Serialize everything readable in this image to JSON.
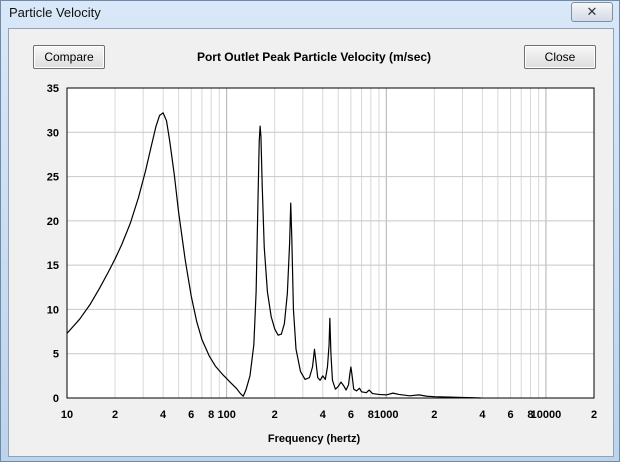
{
  "window": {
    "title": "Particle Velocity",
    "close_glyph": "✕"
  },
  "buttons": {
    "compare_label": "Compare",
    "close_label": "Close"
  },
  "chart_data": {
    "type": "line",
    "title": "Port Outlet Peak Particle Velocity (m/sec)",
    "xlabel": "Frequency (hertz)",
    "ylabel": "",
    "xscale": "log",
    "xlim": [
      10,
      20000
    ],
    "ylim": [
      0,
      35
    ],
    "grid": true,
    "yticks": [
      0,
      5,
      10,
      15,
      20,
      25,
      30,
      35
    ],
    "xtick_labels": [
      {
        "v": 10,
        "t": "10"
      },
      {
        "v": 20,
        "t": "2"
      },
      {
        "v": 40,
        "t": "4"
      },
      {
        "v": 60,
        "t": "6"
      },
      {
        "v": 80,
        "t": "8"
      },
      {
        "v": 100,
        "t": "100"
      },
      {
        "v": 200,
        "t": "2"
      },
      {
        "v": 400,
        "t": "4"
      },
      {
        "v": 600,
        "t": "6"
      },
      {
        "v": 800,
        "t": "8"
      },
      {
        "v": 1000,
        "t": "1000"
      },
      {
        "v": 2000,
        "t": "2"
      },
      {
        "v": 4000,
        "t": "4"
      },
      {
        "v": 6000,
        "t": "6"
      },
      {
        "v": 8000,
        "t": "8"
      },
      {
        "v": 10000,
        "t": "10000"
      },
      {
        "v": 20000,
        "t": "2"
      }
    ],
    "series": [
      {
        "color": "#000000",
        "points": [
          [
            10,
            7.3
          ],
          [
            12,
            8.9
          ],
          [
            14,
            10.6
          ],
          [
            16,
            12.4
          ],
          [
            18,
            14.1
          ],
          [
            20,
            15.7
          ],
          [
            22,
            17.3
          ],
          [
            25,
            19.8
          ],
          [
            28,
            22.6
          ],
          [
            31,
            25.6
          ],
          [
            34,
            28.7
          ],
          [
            36,
            30.6
          ],
          [
            38,
            31.9
          ],
          [
            40,
            32.2
          ],
          [
            42,
            31.3
          ],
          [
            44,
            29.0
          ],
          [
            47,
            25.2
          ],
          [
            50,
            21.0
          ],
          [
            55,
            15.6
          ],
          [
            60,
            11.5
          ],
          [
            65,
            8.6
          ],
          [
            70,
            6.6
          ],
          [
            78,
            4.7
          ],
          [
            85,
            3.6
          ],
          [
            95,
            2.6
          ],
          [
            105,
            1.8
          ],
          [
            115,
            1.1
          ],
          [
            122,
            0.5
          ],
          [
            127,
            0.2
          ],
          [
            132,
            0.9
          ],
          [
            140,
            2.5
          ],
          [
            148,
            6.0
          ],
          [
            153,
            12.0
          ],
          [
            157,
            22.0
          ],
          [
            160,
            29.0
          ],
          [
            162,
            30.7
          ],
          [
            164,
            29.5
          ],
          [
            167,
            24.0
          ],
          [
            172,
            17.0
          ],
          [
            180,
            12.0
          ],
          [
            190,
            9.2
          ],
          [
            200,
            7.8
          ],
          [
            210,
            7.1
          ],
          [
            220,
            7.2
          ],
          [
            230,
            8.4
          ],
          [
            240,
            11.8
          ],
          [
            248,
            17.5
          ],
          [
            252,
            22.0
          ],
          [
            256,
            18.0
          ],
          [
            262,
            10.0
          ],
          [
            272,
            5.5
          ],
          [
            290,
            3.0
          ],
          [
            310,
            2.1
          ],
          [
            330,
            2.3
          ],
          [
            345,
            3.5
          ],
          [
            355,
            5.5
          ],
          [
            362,
            4.2
          ],
          [
            372,
            2.3
          ],
          [
            385,
            2.0
          ],
          [
            400,
            2.5
          ],
          [
            415,
            2.1
          ],
          [
            428,
            3.5
          ],
          [
            438,
            6.0
          ],
          [
            443,
            9.0
          ],
          [
            450,
            5.0
          ],
          [
            460,
            2.0
          ],
          [
            480,
            1.0
          ],
          [
            500,
            1.3
          ],
          [
            520,
            1.8
          ],
          [
            540,
            1.4
          ],
          [
            560,
            0.9
          ],
          [
            580,
            1.5
          ],
          [
            590,
            2.6
          ],
          [
            600,
            3.5
          ],
          [
            610,
            2.6
          ],
          [
            625,
            1.0
          ],
          [
            650,
            0.8
          ],
          [
            680,
            1.1
          ],
          [
            700,
            0.7
          ],
          [
            750,
            0.6
          ],
          [
            780,
            0.9
          ],
          [
            820,
            0.5
          ],
          [
            900,
            0.4
          ],
          [
            1000,
            0.35
          ],
          [
            1100,
            0.55
          ],
          [
            1200,
            0.4
          ],
          [
            1400,
            0.25
          ],
          [
            1600,
            0.35
          ],
          [
            1800,
            0.2
          ],
          [
            2000,
            0.15
          ],
          [
            2500,
            0.1
          ],
          [
            3000,
            0.06
          ],
          [
            3500,
            0.03
          ],
          [
            3900,
            0.0
          ]
        ]
      }
    ]
  }
}
